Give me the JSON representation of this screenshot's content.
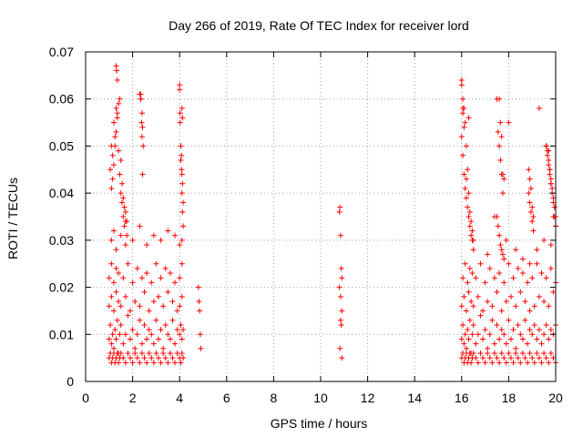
{
  "chart_data": {
    "type": "scatter",
    "title": "Day 266 of 2019, Rate Of TEC Index for receiver lord",
    "xlabel": "GPS time / hours",
    "ylabel": "ROTI / TECUs",
    "xlim": [
      0,
      20
    ],
    "ylim": [
      0,
      0.07
    ],
    "xticks": [
      0,
      2,
      4,
      6,
      8,
      10,
      12,
      14,
      16,
      18,
      20
    ],
    "yticks": [
      0,
      0.01,
      0.02,
      0.03,
      0.04,
      0.05,
      0.06,
      0.07
    ],
    "xtick_labels": [
      "0",
      "2",
      "4",
      "6",
      "8",
      "10",
      "12",
      "14",
      "16",
      "18",
      "20"
    ],
    "ytick_labels": [
      "0",
      "0.01",
      "0.02",
      "0.03",
      "0.04",
      "0.05",
      "0.06",
      "0.07"
    ],
    "grid": true,
    "marker": "+",
    "color": "#ff0000",
    "series": [
      {
        "name": "ROTI",
        "x": [
          1.0,
          1.05,
          1.1,
          1.15,
          1.2,
          1.25,
          1.3,
          1.35,
          1.4,
          1.45,
          1.5,
          1.6,
          1.7,
          1.8,
          1.9,
          2.0,
          2.1,
          2.2,
          2.3,
          2.4,
          2.5,
          2.6,
          2.7,
          2.8,
          2.9,
          3.0,
          3.1,
          3.2,
          3.3,
          3.4,
          3.5,
          3.6,
          3.7,
          3.8,
          3.9,
          4.0,
          4.05,
          4.1,
          4.15,
          1.0,
          1.05,
          1.1,
          1.15,
          1.2,
          1.25,
          1.3,
          1.35,
          1.4,
          1.45,
          1.5,
          1.6,
          1.7,
          1.8,
          1.9,
          2.0,
          2.1,
          2.2,
          2.3,
          2.4,
          2.5,
          2.6,
          2.7,
          2.8,
          2.9,
          3.0,
          3.1,
          3.2,
          3.3,
          3.4,
          3.5,
          3.6,
          3.7,
          3.8,
          3.9,
          4.0,
          4.05,
          4.1,
          4.15,
          1.0,
          1.1,
          1.2,
          1.3,
          1.4,
          1.5,
          1.7,
          1.9,
          2.1,
          2.3,
          2.5,
          2.7,
          2.9,
          3.1,
          3.3,
          3.5,
          3.7,
          3.9,
          4.0,
          4.1,
          1.0,
          1.1,
          1.2,
          1.3,
          1.4,
          1.6,
          1.8,
          2.0,
          2.2,
          2.4,
          2.6,
          2.8,
          3.0,
          3.2,
          3.4,
          3.6,
          3.8,
          4.0,
          4.1,
          1.1,
          1.2,
          1.3,
          1.5,
          1.7,
          2.0,
          2.3,
          2.6,
          2.9,
          3.2,
          3.5,
          3.8,
          4.0,
          4.1,
          1.05,
          1.1,
          1.15,
          1.2,
          1.25,
          1.3,
          1.35,
          1.4,
          1.45,
          1.5,
          1.55,
          1.6,
          1.65,
          1.7,
          1.75,
          2.35,
          2.4,
          2.42,
          2.45,
          4.0,
          4.02,
          4.05,
          4.08,
          4.1,
          4.12,
          4.15,
          1.1,
          1.15,
          1.2,
          1.25,
          1.3,
          1.35,
          1.4,
          1.45,
          1.5,
          1.55,
          1.6,
          1.65,
          1.7,
          1.75,
          2.35,
          2.38,
          2.4,
          2.42,
          4.0,
          4.02,
          4.05,
          4.08,
          4.1,
          4.12,
          4.15,
          1.3,
          1.32,
          1.35,
          2.3,
          2.35,
          4.1,
          4.12,
          4.8,
          4.82,
          4.85,
          4.88,
          4.9,
          10.8,
          10.82,
          10.85,
          10.88,
          10.9,
          10.8,
          10.85,
          10.9,
          10.85,
          10.88,
          10.82,
          10.9,
          16.0,
          16.05,
          16.1,
          16.15,
          16.2,
          16.25,
          16.3,
          16.35,
          16.4,
          16.45,
          16.5,
          16.6,
          16.7,
          16.8,
          16.9,
          17.0,
          17.1,
          17.2,
          17.3,
          17.4,
          17.5,
          17.6,
          17.7,
          17.8,
          17.9,
          18.0,
          18.1,
          18.2,
          18.3,
          18.4,
          18.5,
          18.6,
          18.7,
          18.8,
          18.9,
          19.0,
          19.1,
          19.2,
          19.3,
          19.4,
          19.5,
          19.6,
          19.7,
          19.8,
          19.9,
          20.0,
          16.0,
          16.05,
          16.1,
          16.15,
          16.2,
          16.25,
          16.3,
          16.35,
          16.4,
          16.45,
          16.5,
          16.6,
          16.7,
          16.8,
          16.9,
          17.0,
          17.1,
          17.2,
          17.3,
          17.4,
          17.5,
          17.6,
          17.7,
          17.8,
          17.9,
          18.0,
          18.1,
          18.2,
          18.3,
          18.4,
          18.5,
          18.6,
          18.7,
          18.8,
          18.9,
          19.0,
          19.1,
          19.2,
          19.3,
          19.4,
          19.5,
          19.6,
          19.7,
          19.8,
          19.9,
          20.0,
          16.0,
          16.1,
          16.2,
          16.3,
          16.4,
          16.5,
          16.7,
          16.9,
          17.1,
          17.3,
          17.5,
          17.7,
          17.9,
          18.1,
          18.3,
          18.5,
          18.7,
          18.9,
          19.1,
          19.3,
          19.5,
          19.7,
          19.9,
          16.05,
          16.15,
          16.25,
          16.35,
          16.45,
          16.6,
          16.8,
          17.0,
          17.2,
          17.4,
          17.6,
          17.8,
          18.0,
          18.2,
          18.4,
          18.6,
          18.8,
          19.0,
          19.2,
          19.4,
          19.6,
          19.8,
          20.0,
          16.0,
          16.05,
          16.1,
          16.15,
          16.2,
          16.25,
          16.3,
          16.35,
          16.4,
          16.45,
          16.5,
          17.5,
          17.55,
          17.6,
          17.65,
          17.7,
          17.75,
          17.8,
          18.85,
          18.9,
          18.95,
          19.0,
          19.05,
          19.6,
          19.65,
          19.7,
          19.75,
          19.8,
          19.85,
          19.9,
          19.95,
          20.0,
          16.0,
          16.05,
          16.1,
          16.15,
          16.2,
          16.25,
          16.3,
          16.35,
          16.4,
          16.45,
          17.5,
          17.55,
          17.6,
          17.65,
          17.7,
          17.75,
          18.85,
          18.9,
          18.95,
          19.0,
          19.05,
          19.6,
          19.65,
          19.7,
          19.75,
          19.8,
          19.85,
          19.9,
          19.95,
          20.0,
          16.0,
          16.05,
          16.1,
          16.2,
          17.6,
          17.65,
          17.7,
          17.75,
          17.8,
          18.0,
          19.3,
          19.6,
          19.7,
          19.75,
          19.8,
          19.9,
          20.0,
          16.05,
          16.3,
          17.4,
          17.9,
          18.3,
          18.9,
          19.5,
          19.8,
          16.5,
          17.1,
          18.6,
          19.2
        ],
        "y": [
          0.009,
          0.012,
          0.008,
          0.01,
          0.007,
          0.011,
          0.009,
          0.013,
          0.006,
          0.01,
          0.012,
          0.008,
          0.01,
          0.014,
          0.009,
          0.011,
          0.007,
          0.01,
          0.013,
          0.008,
          0.012,
          0.009,
          0.011,
          0.01,
          0.008,
          0.013,
          0.009,
          0.011,
          0.007,
          0.012,
          0.01,
          0.009,
          0.013,
          0.008,
          0.011,
          0.01,
          0.012,
          0.009,
          0.011,
          0.005,
          0.006,
          0.004,
          0.005,
          0.006,
          0.004,
          0.005,
          0.006,
          0.004,
          0.005,
          0.006,
          0.005,
          0.004,
          0.006,
          0.005,
          0.004,
          0.006,
          0.005,
          0.004,
          0.006,
          0.005,
          0.004,
          0.006,
          0.005,
          0.004,
          0.006,
          0.005,
          0.004,
          0.006,
          0.005,
          0.004,
          0.006,
          0.005,
          0.004,
          0.006,
          0.005,
          0.004,
          0.006,
          0.005,
          0.016,
          0.018,
          0.015,
          0.019,
          0.017,
          0.016,
          0.018,
          0.015,
          0.017,
          0.016,
          0.019,
          0.015,
          0.017,
          0.018,
          0.016,
          0.019,
          0.017,
          0.015,
          0.016,
          0.018,
          0.022,
          0.025,
          0.021,
          0.024,
          0.023,
          0.022,
          0.025,
          0.021,
          0.024,
          0.022,
          0.023,
          0.021,
          0.025,
          0.022,
          0.024,
          0.023,
          0.021,
          0.022,
          0.025,
          0.03,
          0.032,
          0.028,
          0.031,
          0.029,
          0.03,
          0.033,
          0.029,
          0.031,
          0.03,
          0.032,
          0.031,
          0.029,
          0.03,
          0.045,
          0.05,
          0.048,
          0.055,
          0.052,
          0.058,
          0.057,
          0.049,
          0.044,
          0.04,
          0.038,
          0.035,
          0.033,
          0.036,
          0.034,
          0.061,
          0.057,
          0.054,
          0.05,
          0.063,
          0.057,
          0.05,
          0.048,
          0.044,
          0.042,
          0.038,
          0.041,
          0.043,
          0.046,
          0.05,
          0.053,
          0.056,
          0.059,
          0.06,
          0.047,
          0.042,
          0.039,
          0.037,
          0.034,
          0.031,
          0.06,
          0.055,
          0.052,
          0.044,
          0.062,
          0.055,
          0.047,
          0.045,
          0.04,
          0.036,
          0.033,
          0.067,
          0.066,
          0.064,
          0.061,
          0.06,
          0.058,
          0.056,
          0.02,
          0.017,
          0.015,
          0.01,
          0.007,
          0.036,
          0.037,
          0.031,
          0.024,
          0.022,
          0.02,
          0.018,
          0.015,
          0.013,
          0.012,
          0.007,
          0.005,
          0.009,
          0.012,
          0.008,
          0.01,
          0.007,
          0.011,
          0.009,
          0.013,
          0.006,
          0.01,
          0.012,
          0.008,
          0.01,
          0.014,
          0.009,
          0.011,
          0.007,
          0.01,
          0.013,
          0.008,
          0.012,
          0.009,
          0.011,
          0.01,
          0.008,
          0.013,
          0.009,
          0.011,
          0.007,
          0.012,
          0.01,
          0.009,
          0.013,
          0.008,
          0.011,
          0.01,
          0.012,
          0.009,
          0.011,
          0.008,
          0.01,
          0.012,
          0.009,
          0.011,
          0.01,
          0.012,
          0.005,
          0.006,
          0.004,
          0.005,
          0.006,
          0.004,
          0.005,
          0.006,
          0.004,
          0.005,
          0.006,
          0.005,
          0.004,
          0.006,
          0.005,
          0.004,
          0.006,
          0.005,
          0.004,
          0.006,
          0.005,
          0.004,
          0.006,
          0.005,
          0.004,
          0.006,
          0.005,
          0.004,
          0.006,
          0.005,
          0.004,
          0.006,
          0.005,
          0.004,
          0.006,
          0.005,
          0.004,
          0.006,
          0.005,
          0.004,
          0.006,
          0.005,
          0.004,
          0.006,
          0.005,
          0.004,
          0.016,
          0.018,
          0.015,
          0.019,
          0.017,
          0.016,
          0.018,
          0.015,
          0.017,
          0.016,
          0.019,
          0.015,
          0.017,
          0.018,
          0.016,
          0.019,
          0.017,
          0.015,
          0.016,
          0.018,
          0.017,
          0.016,
          0.019,
          0.022,
          0.025,
          0.021,
          0.024,
          0.023,
          0.022,
          0.025,
          0.021,
          0.024,
          0.022,
          0.023,
          0.021,
          0.025,
          0.022,
          0.024,
          0.023,
          0.021,
          0.022,
          0.025,
          0.023,
          0.022,
          0.024,
          0.021,
          0.064,
          0.06,
          0.058,
          0.055,
          0.05,
          0.045,
          0.04,
          0.036,
          0.034,
          0.032,
          0.03,
          0.035,
          0.033,
          0.031,
          0.029,
          0.028,
          0.027,
          0.026,
          0.04,
          0.038,
          0.036,
          0.034,
          0.032,
          0.05,
          0.048,
          0.046,
          0.044,
          0.042,
          0.04,
          0.038,
          0.035,
          0.033,
          0.052,
          0.048,
          0.044,
          0.041,
          0.039,
          0.037,
          0.035,
          0.033,
          0.031,
          0.03,
          0.06,
          0.053,
          0.05,
          0.047,
          0.044,
          0.04,
          0.045,
          0.043,
          0.041,
          0.037,
          0.035,
          0.05,
          0.049,
          0.047,
          0.045,
          0.043,
          0.041,
          0.039,
          0.037,
          0.035,
          0.063,
          0.057,
          0.054,
          0.043,
          0.06,
          0.055,
          0.052,
          0.044,
          0.043,
          0.055,
          0.058,
          0.05,
          0.049,
          0.045,
          0.042,
          0.035,
          0.033,
          0.058,
          0.056,
          0.035,
          0.03,
          0.028,
          0.025,
          0.03,
          0.029,
          0.028,
          0.027,
          0.026,
          0.028
        ]
      }
    ]
  }
}
